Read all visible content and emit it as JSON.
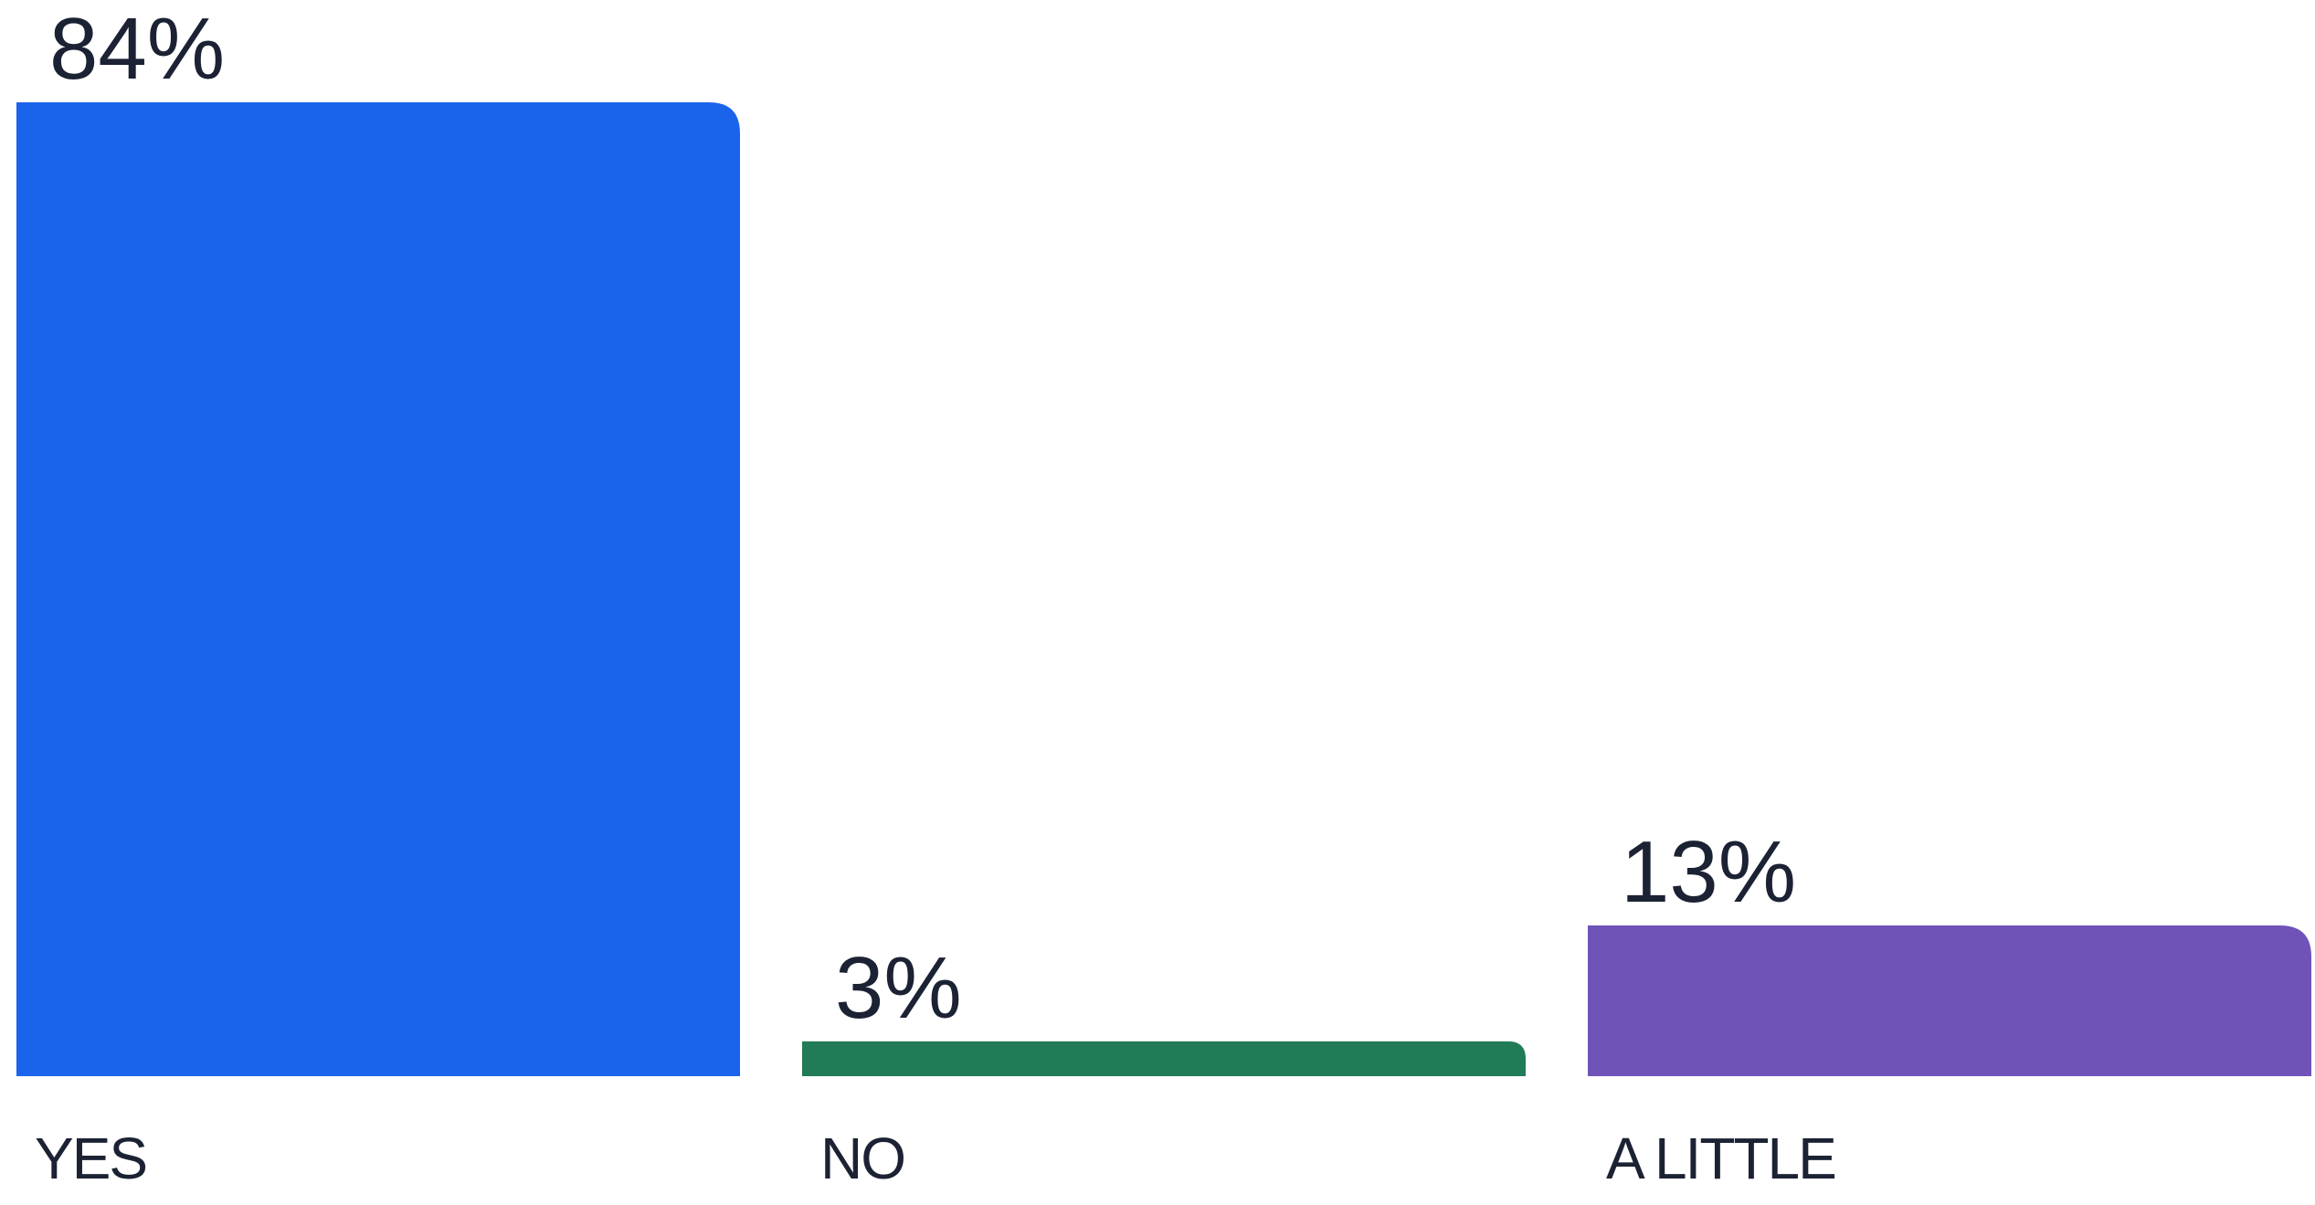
{
  "chart_data": {
    "type": "bar",
    "title": "",
    "xlabel": "",
    "ylabel": "",
    "ylim": [
      0,
      84
    ],
    "grid": false,
    "legend": "none",
    "categories": [
      "YES",
      "NO",
      "A LITTLE"
    ],
    "values": [
      84,
      3,
      13
    ],
    "value_labels": [
      "84%",
      "3%",
      "13%"
    ],
    "colors": [
      "#1a64ec",
      "#227b57",
      "#6f53b8"
    ]
  }
}
